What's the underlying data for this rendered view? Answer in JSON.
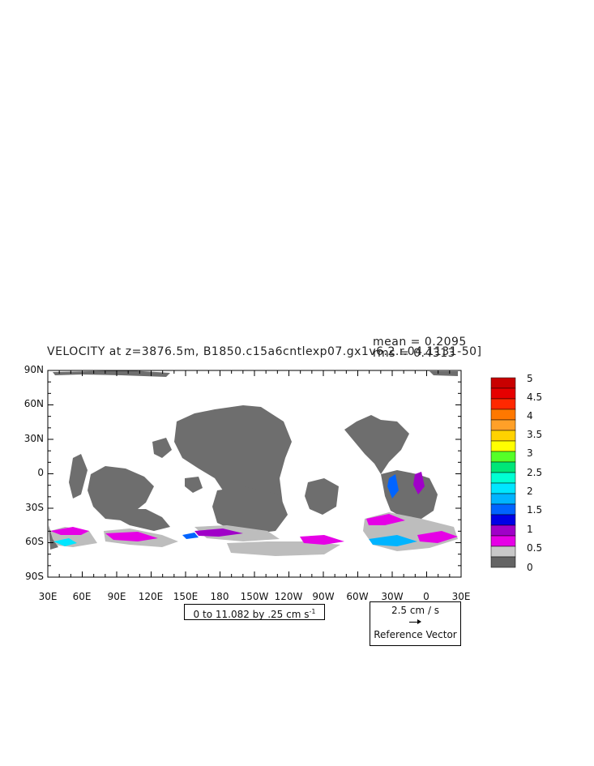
{
  "title": "VELOCITY at z=3876.5m, B1850.c15a6cntlexp07.gx1v6.2.r.04.1131-50]",
  "stats": {
    "mean": "mean = 0.2095",
    "rms": "rms = 0.4313"
  },
  "lat_labels": [
    "90N",
    "60N",
    "30N",
    "0",
    "30S",
    "60S",
    "90S"
  ],
  "lon_labels": [
    "30E",
    "60E",
    "90E",
    "120E",
    "150E",
    "180",
    "150W",
    "120W",
    "90W",
    "60W",
    "30W",
    "0",
    "30E"
  ],
  "contour_box": {
    "text": "0 to 11.082 by .25 cm s",
    "sup": "-1"
  },
  "reference_vector": {
    "speed": "2.5 cm / s",
    "label": "Reference Vector"
  },
  "legend": {
    "labels": [
      "5",
      "4.5",
      "4",
      "3.5",
      "3",
      "2.5",
      "2",
      "1.5",
      "1",
      "0.5",
      "0"
    ],
    "colors": [
      "#c80000",
      "#e60000",
      "#ff2800",
      "#ff7800",
      "#ffa028",
      "#ffd200",
      "#ffff00",
      "#55ff28",
      "#00e678",
      "#00ffd2",
      "#00e6ff",
      "#00b4ff",
      "#0064ff",
      "#0000e6",
      "#a000c8",
      "#e600e6",
      "#c8c8c8",
      "#646464"
    ]
  }
}
